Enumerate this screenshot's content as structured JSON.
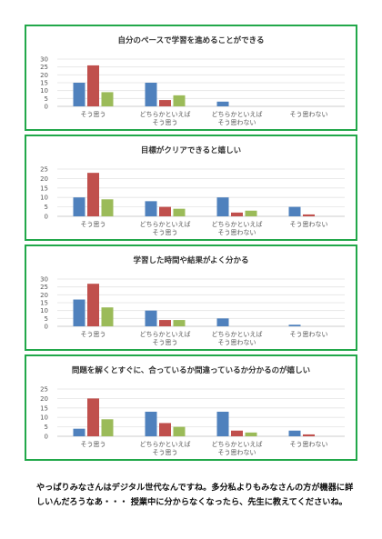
{
  "chart_data": [
    {
      "type": "bar",
      "title": "自分のペースで学習を進めることができる",
      "categories": [
        "そう思う",
        "どちらかといえば\nそう思う",
        "どちらかといえば\nそう思わない",
        "そう思わない"
      ],
      "series": [
        {
          "values": [
            15,
            15,
            3,
            0
          ],
          "color": "#4f81bd"
        },
        {
          "values": [
            26,
            4,
            0,
            0
          ],
          "color": "#c0504d"
        },
        {
          "values": [
            9,
            7,
            0,
            0
          ],
          "color": "#9bbb59"
        }
      ],
      "yticks": [
        0,
        5,
        10,
        15,
        20,
        25,
        30
      ],
      "ylim": [
        0,
        30
      ],
      "grid": true
    },
    {
      "type": "bar",
      "title": "目標がクリアできると嬉しい",
      "categories": [
        "そう思う",
        "どちらかといえば\nそう思う",
        "どちらかといえば\nそう思わない",
        "そう思わない"
      ],
      "series": [
        {
          "values": [
            10,
            8,
            10,
            5
          ],
          "color": "#4f81bd"
        },
        {
          "values": [
            23,
            5,
            2,
            1
          ],
          "color": "#c0504d"
        },
        {
          "values": [
            9,
            4,
            3,
            0
          ],
          "color": "#9bbb59"
        }
      ],
      "yticks": [
        0,
        5,
        10,
        15,
        20,
        25
      ],
      "ylim": [
        0,
        25
      ],
      "grid": true
    },
    {
      "type": "bar",
      "title": "学習した時間や結果がよく分かる",
      "categories": [
        "そう思う",
        "どちらかといえば\nそう思う",
        "どちらかといえば\nそう思わない",
        "そう思わない"
      ],
      "series": [
        {
          "values": [
            17,
            10,
            5,
            1
          ],
          "color": "#4f81bd"
        },
        {
          "values": [
            27,
            4,
            0,
            0
          ],
          "color": "#c0504d"
        },
        {
          "values": [
            12,
            4,
            0,
            0
          ],
          "color": "#9bbb59"
        }
      ],
      "yticks": [
        0,
        5,
        10,
        15,
        20,
        25,
        30
      ],
      "ylim": [
        0,
        30
      ],
      "grid": true
    },
    {
      "type": "bar",
      "title": "問題を解くとすぐに、合っているか間違っているか分かるのが嬉しい",
      "categories": [
        "そう思う",
        "どちらかといえば\nそう思う",
        "どちらかといえば\nそう思わない",
        "そう思わない"
      ],
      "series": [
        {
          "values": [
            4,
            13,
            13,
            3
          ],
          "color": "#4f81bd"
        },
        {
          "values": [
            20,
            7,
            3,
            1
          ],
          "color": "#c0504d"
        },
        {
          "values": [
            9,
            5,
            2,
            0
          ],
          "color": "#9bbb59"
        }
      ],
      "yticks": [
        0,
        5,
        10,
        15,
        20,
        25
      ],
      "ylim": [
        0,
        25
      ],
      "grid": true
    }
  ],
  "comment": "やっぱりみなさんはデジタル世代なんですね。多分私よりもみなさんの方が機器に詳しいんだろうなあ・・・ 授業中に分からなくなったら、先生に教えてくださいね。"
}
